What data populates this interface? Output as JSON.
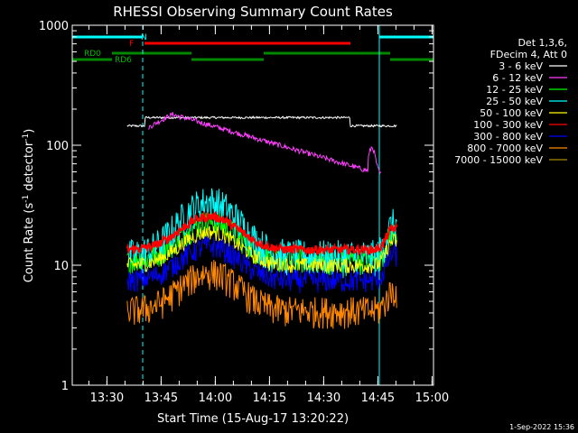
{
  "chart_data": {
    "type": "line",
    "title": "RHESSI Observing Summary Count Rates",
    "xlabel": "Start Time (15-Aug-17 13:20:22)",
    "ylabel_main": "Count Rate (s",
    "ylabel_sup1": "-1",
    "ylabel_mid": " detector",
    "ylabel_sup2": "-1",
    "ylabel_end": ")",
    "y_scale": "log",
    "ylim": [
      1,
      1000
    ],
    "xlim_minutes": [
      0,
      100
    ],
    "x_ticks": [
      {
        "label": "13:30",
        "minute": 9.6
      },
      {
        "label": "13:45",
        "minute": 24.6
      },
      {
        "label": "14:00",
        "minute": 39.6
      },
      {
        "label": "14:15",
        "minute": 54.6
      },
      {
        "label": "14:30",
        "minute": 69.6
      },
      {
        "label": "14:45",
        "minute": 84.6
      },
      {
        "label": "15:00",
        "minute": 99.6
      }
    ],
    "y_ticks": [
      {
        "label": "1",
        "value": 1
      },
      {
        "label": "10",
        "value": 10
      },
      {
        "label": "100",
        "value": 100
      },
      {
        "label": "1000",
        "value": 1000
      }
    ],
    "legend_header": [
      "Det 1,3,6,",
      "FDecim 4, Att 0"
    ],
    "series": [
      {
        "name": "3 - 6 keV",
        "color": "#ffffff"
      },
      {
        "name": "6 - 12 keV",
        "color": "#ff40ff"
      },
      {
        "name": "12 - 25 keV",
        "color": "#00ff00"
      },
      {
        "name": "25 - 50 keV",
        "color": "#00ffff"
      },
      {
        "name": "50 - 100 keV",
        "color": "#ffff00"
      },
      {
        "name": "100 - 300 keV",
        "color": "#ff0000"
      },
      {
        "name": "300 - 800 keV",
        "color": "#0000ff"
      },
      {
        "name": "800 - 7000 keV",
        "color": "#ff8800"
      },
      {
        "name": "7000 - 15000 keV",
        "color": "#aa8800"
      }
    ],
    "flags": [
      {
        "label": "N",
        "color": "#00ffff",
        "segments": [
          [
            0,
            19.5
          ],
          [
            85,
            100
          ]
        ]
      },
      {
        "label": "F",
        "color": "#ff0000",
        "segments": [
          [
            20,
            77
          ]
        ]
      },
      {
        "label": "RD0",
        "color": "#008800",
        "segments": [
          [
            11,
            33
          ],
          [
            53,
            88
          ]
        ]
      },
      {
        "label": "RD6",
        "color": "#008800",
        "segments": [
          [
            0,
            11
          ],
          [
            33,
            53
          ],
          [
            88,
            100
          ]
        ]
      }
    ],
    "vlines": [
      {
        "minute": 0,
        "color": "#00ffff",
        "style": "solid"
      },
      {
        "minute": 19.5,
        "color": "#00ffff",
        "style": "dashed"
      },
      {
        "minute": 85,
        "color": "#00ffff",
        "style": "solid"
      },
      {
        "minute": 100,
        "color": "#00ffff",
        "style": "dashed"
      }
    ]
  },
  "footer": {
    "date": "1-Sep-2022 15:36"
  }
}
